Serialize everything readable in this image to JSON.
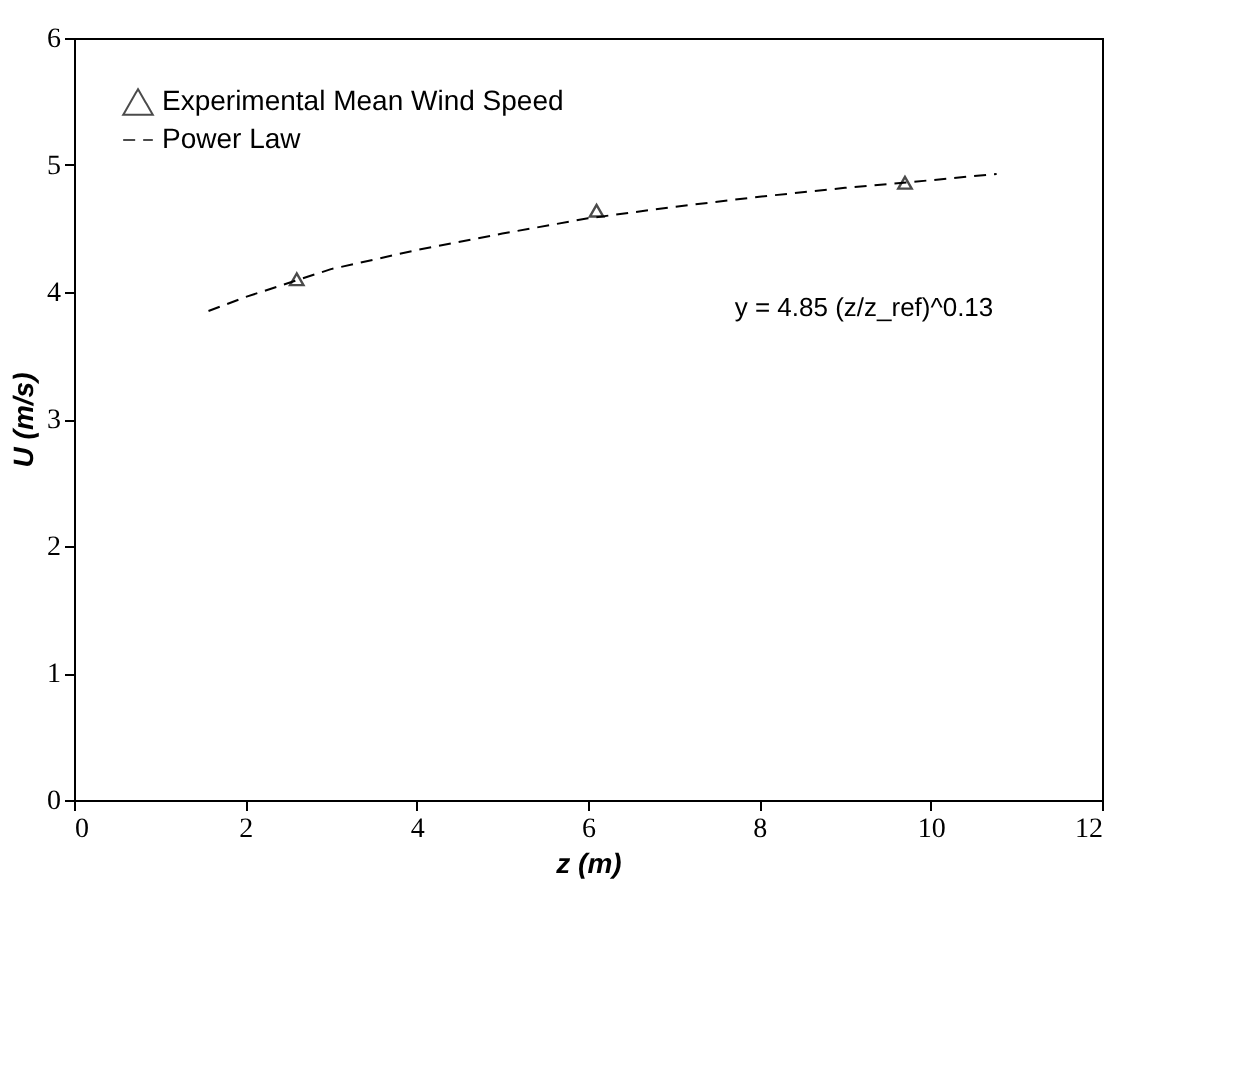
{
  "chart_data": {
    "type": "scatter",
    "xlabel": "z  (m)",
    "ylabel": "U  (m/s)",
    "xlim": [
      0,
      12
    ],
    "ylim": [
      0,
      6
    ],
    "xticks": [
      0,
      2,
      4,
      6,
      8,
      10,
      12
    ],
    "yticks": [
      0,
      1,
      2,
      3,
      4,
      5,
      6
    ],
    "grid": false,
    "legend": "top left",
    "annotations": [
      "y = 4.85 (z/z_ref)^0.13"
    ],
    "series": [
      {
        "name": "Experimental Mean Wind Speed",
        "marker": "triangle",
        "color": "#000000",
        "x": [
          2.6,
          6.1,
          9.7
        ],
        "values": [
          4.1,
          4.64,
          4.86
        ]
      },
      {
        "name": "Power Law",
        "type": "line",
        "line_style": "dashed",
        "marker": "none",
        "color": "#000000",
        "x": [
          1.57,
          2,
          3,
          4,
          5,
          6,
          7,
          8,
          9,
          10,
          10.77
        ],
        "values": [
          3.85,
          3.96,
          4.18,
          4.33,
          4.46,
          4.58,
          4.67,
          4.75,
          4.82,
          4.88,
          4.93
        ]
      }
    ]
  }
}
